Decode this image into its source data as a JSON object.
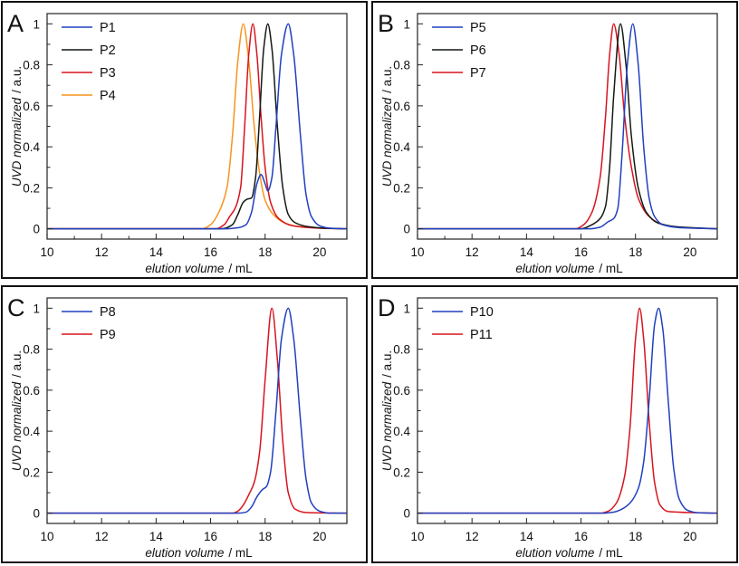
{
  "chart_data": [
    {
      "panel": "A",
      "type": "line",
      "xlabel_italic": "elution volume",
      "xlabel_unit": "/ mL",
      "ylabel_italic": "UVD normalized",
      "ylabel_unit": "/ a.u.",
      "xlim": [
        10,
        21
      ],
      "ylim": [
        -0.05,
        1.05
      ],
      "xticks": [
        "10",
        "12",
        "14",
        "16",
        "18",
        "20"
      ],
      "yticks": [
        "0",
        "0.2",
        "0.4",
        "0.6",
        "0.8",
        "1"
      ],
      "grid": false,
      "legend_placement": "top-left",
      "series": [
        {
          "name": "P1",
          "color": "#2040c0",
          "points": [
            [
              10,
              0
            ],
            [
              16.5,
              0
            ],
            [
              17.0,
              0.005
            ],
            [
              17.3,
              0.02
            ],
            [
              17.5,
              0.08
            ],
            [
              17.7,
              0.22
            ],
            [
              17.85,
              0.265
            ],
            [
              18.0,
              0.22
            ],
            [
              18.1,
              0.185
            ],
            [
              18.25,
              0.25
            ],
            [
              18.4,
              0.5
            ],
            [
              18.6,
              0.85
            ],
            [
              18.85,
              1
            ],
            [
              19.05,
              0.85
            ],
            [
              19.3,
              0.45
            ],
            [
              19.5,
              0.17
            ],
            [
              19.7,
              0.06
            ],
            [
              20.0,
              0.015
            ],
            [
              20.4,
              0.003
            ],
            [
              21,
              0
            ]
          ]
        },
        {
          "name": "P2",
          "color": "#141a14",
          "points": [
            [
              10,
              0
            ],
            [
              16.4,
              0
            ],
            [
              16.8,
              0.02
            ],
            [
              17.0,
              0.07
            ],
            [
              17.2,
              0.13
            ],
            [
              17.35,
              0.145
            ],
            [
              17.5,
              0.15
            ],
            [
              17.65,
              0.25
            ],
            [
              17.8,
              0.55
            ],
            [
              17.95,
              0.88
            ],
            [
              18.1,
              1
            ],
            [
              18.25,
              0.88
            ],
            [
              18.45,
              0.5
            ],
            [
              18.65,
              0.2
            ],
            [
              18.85,
              0.07
            ],
            [
              19.1,
              0.03
            ],
            [
              19.6,
              0.01
            ],
            [
              20.2,
              0.003
            ],
            [
              21,
              0
            ]
          ]
        },
        {
          "name": "P3",
          "color": "#d8141e",
          "points": [
            [
              10,
              0
            ],
            [
              16.2,
              0
            ],
            [
              16.5,
              0.02
            ],
            [
              16.7,
              0.06
            ],
            [
              16.9,
              0.1
            ],
            [
              17.1,
              0.2
            ],
            [
              17.25,
              0.5
            ],
            [
              17.4,
              0.85
            ],
            [
              17.55,
              1
            ],
            [
              17.7,
              0.85
            ],
            [
              17.85,
              0.55
            ],
            [
              18.0,
              0.3
            ],
            [
              18.2,
              0.13
            ],
            [
              18.5,
              0.05
            ],
            [
              19.0,
              0.015
            ],
            [
              20,
              0.003
            ],
            [
              21,
              0
            ]
          ]
        },
        {
          "name": "P4",
          "color": "#f7941d",
          "points": [
            [
              10,
              0
            ],
            [
              15.7,
              0
            ],
            [
              16.0,
              0.02
            ],
            [
              16.3,
              0.08
            ],
            [
              16.6,
              0.2
            ],
            [
              16.8,
              0.45
            ],
            [
              17.0,
              0.82
            ],
            [
              17.2,
              1
            ],
            [
              17.4,
              0.82
            ],
            [
              17.6,
              0.5
            ],
            [
              17.8,
              0.27
            ],
            [
              18.0,
              0.14
            ],
            [
              18.3,
              0.07
            ],
            [
              18.7,
              0.03
            ],
            [
              19.2,
              0.012
            ],
            [
              20,
              0.004
            ],
            [
              21,
              0
            ]
          ]
        }
      ]
    },
    {
      "panel": "B",
      "type": "line",
      "xlabel_italic": "elution volume",
      "xlabel_unit": "/ mL",
      "ylabel_italic": "UVD normalized",
      "ylabel_unit": "/ a.u.",
      "xlim": [
        10,
        21
      ],
      "ylim": [
        -0.05,
        1.05
      ],
      "xticks": [
        "10",
        "12",
        "14",
        "16",
        "18",
        "20"
      ],
      "yticks": [
        "0",
        "0.2",
        "0.4",
        "0.6",
        "0.8",
        "1"
      ],
      "grid": false,
      "legend_placement": "top-left",
      "series": [
        {
          "name": "P5",
          "color": "#2040c0",
          "points": [
            [
              10,
              0
            ],
            [
              16.3,
              0
            ],
            [
              16.7,
              0.008
            ],
            [
              17.0,
              0.035
            ],
            [
              17.2,
              0.05
            ],
            [
              17.35,
              0.1
            ],
            [
              17.5,
              0.35
            ],
            [
              17.7,
              0.8
            ],
            [
              17.9,
              1
            ],
            [
              18.1,
              0.8
            ],
            [
              18.3,
              0.4
            ],
            [
              18.5,
              0.15
            ],
            [
              18.7,
              0.06
            ],
            [
              19.0,
              0.02
            ],
            [
              19.6,
              0.006
            ],
            [
              20.5,
              0.002
            ],
            [
              21,
              0
            ]
          ]
        },
        {
          "name": "P6",
          "color": "#141a14",
          "points": [
            [
              10,
              0
            ],
            [
              16.0,
              0
            ],
            [
              16.4,
              0.02
            ],
            [
              16.7,
              0.05
            ],
            [
              16.9,
              0.11
            ],
            [
              17.05,
              0.3
            ],
            [
              17.2,
              0.65
            ],
            [
              17.45,
              1
            ],
            [
              17.65,
              0.8
            ],
            [
              17.85,
              0.45
            ],
            [
              18.1,
              0.2
            ],
            [
              18.4,
              0.08
            ],
            [
              18.8,
              0.03
            ],
            [
              19.5,
              0.01
            ],
            [
              20.5,
              0.003
            ],
            [
              21,
              0
            ]
          ]
        },
        {
          "name": "P7",
          "color": "#d8141e",
          "points": [
            [
              10,
              0
            ],
            [
              15.8,
              0
            ],
            [
              16.1,
              0.02
            ],
            [
              16.4,
              0.08
            ],
            [
              16.7,
              0.25
            ],
            [
              16.9,
              0.55
            ],
            [
              17.05,
              0.85
            ],
            [
              17.2,
              1
            ],
            [
              17.4,
              0.85
            ],
            [
              17.6,
              0.55
            ],
            [
              17.85,
              0.3
            ],
            [
              18.1,
              0.15
            ],
            [
              18.5,
              0.06
            ],
            [
              19.0,
              0.02
            ],
            [
              19.8,
              0.006
            ],
            [
              21,
              0
            ]
          ]
        }
      ]
    },
    {
      "panel": "C",
      "type": "line",
      "xlabel_italic": "elution volume",
      "xlabel_unit": "/ mL",
      "ylabel_italic": "UVD normalized",
      "ylabel_unit": "/ a.u.",
      "xlim": [
        10,
        21
      ],
      "ylim": [
        -0.05,
        1.05
      ],
      "xticks": [
        "10",
        "12",
        "14",
        "16",
        "18",
        "20"
      ],
      "yticks": [
        "0",
        "0.2",
        "0.4",
        "0.6",
        "0.8",
        "1"
      ],
      "grid": false,
      "legend_placement": "top-left",
      "series": [
        {
          "name": "P8",
          "color": "#2040c0",
          "points": [
            [
              10,
              0
            ],
            [
              17.0,
              0
            ],
            [
              17.3,
              0.005
            ],
            [
              17.5,
              0.03
            ],
            [
              17.7,
              0.08
            ],
            [
              17.9,
              0.115
            ],
            [
              18.05,
              0.13
            ],
            [
              18.2,
              0.2
            ],
            [
              18.4,
              0.5
            ],
            [
              18.6,
              0.85
            ],
            [
              18.85,
              1
            ],
            [
              19.05,
              0.85
            ],
            [
              19.3,
              0.45
            ],
            [
              19.5,
              0.17
            ],
            [
              19.7,
              0.05
            ],
            [
              20.0,
              0.01
            ],
            [
              20.4,
              0
            ],
            [
              21,
              0
            ]
          ]
        },
        {
          "name": "P9",
          "color": "#d8141e",
          "points": [
            [
              10,
              0
            ],
            [
              16.8,
              0
            ],
            [
              17.0,
              0.01
            ],
            [
              17.2,
              0.04
            ],
            [
              17.4,
              0.09
            ],
            [
              17.6,
              0.15
            ],
            [
              17.8,
              0.3
            ],
            [
              18.0,
              0.65
            ],
            [
              18.25,
              1
            ],
            [
              18.45,
              0.75
            ],
            [
              18.65,
              0.35
            ],
            [
              18.85,
              0.1
            ],
            [
              19.1,
              0.02
            ],
            [
              19.5,
              0.003
            ],
            [
              21,
              0
            ]
          ]
        }
      ]
    },
    {
      "panel": "D",
      "type": "line",
      "xlabel_italic": "elution volume",
      "xlabel_unit": "/ mL",
      "ylabel_italic": "UVD normalized",
      "ylabel_unit": "/ a.u.",
      "xlim": [
        10,
        21
      ],
      "ylim": [
        -0.05,
        1.05
      ],
      "xticks": [
        "10",
        "12",
        "14",
        "16",
        "18",
        "20"
      ],
      "yticks": [
        "0",
        "0.2",
        "0.4",
        "0.6",
        "0.8",
        "1"
      ],
      "grid": false,
      "legend_placement": "top-left",
      "series": [
        {
          "name": "P10",
          "color": "#2040c0",
          "points": [
            [
              10,
              0
            ],
            [
              16.8,
              0
            ],
            [
              17.2,
              0.005
            ],
            [
              17.5,
              0.02
            ],
            [
              17.8,
              0.05
            ],
            [
              18.1,
              0.12
            ],
            [
              18.3,
              0.25
            ],
            [
              18.5,
              0.55
            ],
            [
              18.7,
              0.92
            ],
            [
              18.85,
              1
            ],
            [
              19.0,
              0.9
            ],
            [
              19.2,
              0.55
            ],
            [
              19.4,
              0.22
            ],
            [
              19.6,
              0.07
            ],
            [
              19.9,
              0.015
            ],
            [
              20.3,
              0.002
            ],
            [
              21,
              0
            ]
          ]
        },
        {
          "name": "P11",
          "color": "#d8141e",
          "points": [
            [
              10,
              0
            ],
            [
              16.7,
              0
            ],
            [
              17.0,
              0.01
            ],
            [
              17.3,
              0.05
            ],
            [
              17.6,
              0.18
            ],
            [
              17.8,
              0.42
            ],
            [
              18.0,
              0.85
            ],
            [
              18.15,
              1
            ],
            [
              18.3,
              0.85
            ],
            [
              18.5,
              0.45
            ],
            [
              18.7,
              0.15
            ],
            [
              18.9,
              0.04
            ],
            [
              19.2,
              0.008
            ],
            [
              21,
              0
            ]
          ]
        }
      ]
    }
  ]
}
